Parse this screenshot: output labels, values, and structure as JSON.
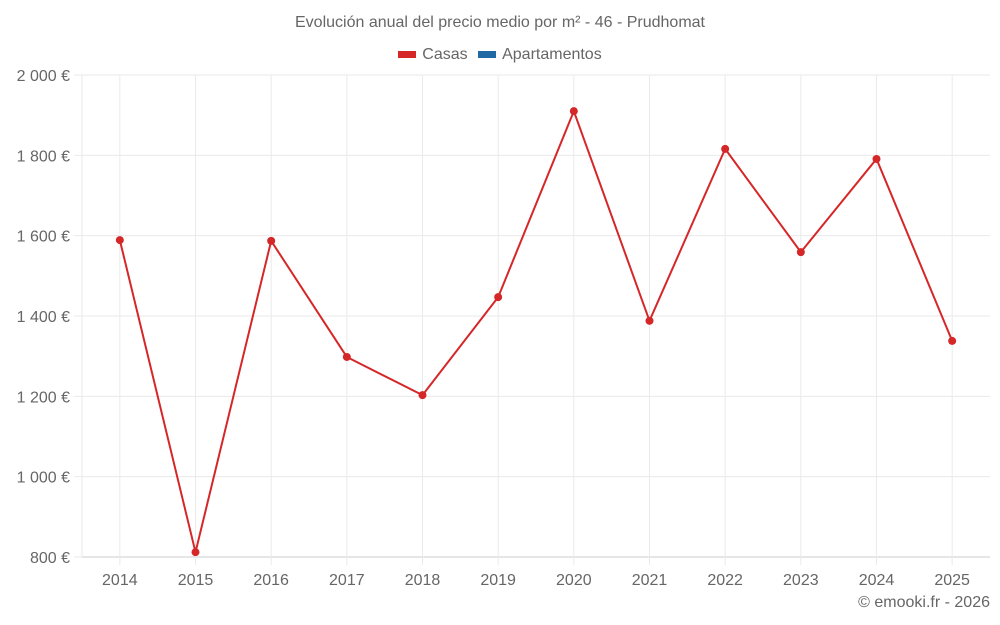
{
  "header": {
    "title": "Evolución anual del precio medio por m² - 46 - Prudhomat"
  },
  "legend": [
    {
      "label": "Casas",
      "color": "#d62728"
    },
    {
      "label": "Apartamentos",
      "color": "#1f6aa5"
    }
  ],
  "footer": {
    "credit": "© emooki.fr - 2026"
  },
  "colors": {
    "series": "#d62728",
    "grid": "#eaeaea",
    "axis": "#cccccc"
  },
  "chart_data": {
    "type": "line",
    "title": "Evolución anual del precio medio por m² - 46 - Prudhomat",
    "xlabel": "",
    "ylabel": "",
    "categories": [
      "2014",
      "2015",
      "2016",
      "2017",
      "2018",
      "2019",
      "2020",
      "2021",
      "2022",
      "2023",
      "2024",
      "2025"
    ],
    "series": [
      {
        "name": "Casas",
        "color": "#d62728",
        "values": [
          1589,
          812,
          1587,
          1298,
          1203,
          1447,
          1910,
          1388,
          1816,
          1559,
          1791,
          1338
        ]
      },
      {
        "name": "Apartamentos",
        "color": "#1f6aa5",
        "values": []
      }
    ],
    "ylim": [
      800,
      2000
    ],
    "yticks": [
      "800 €",
      "1 000 €",
      "1 200 €",
      "1 400 €",
      "1 600 €",
      "1 800 €",
      "2 000 €"
    ],
    "grid": true,
    "legend_position": "top"
  }
}
